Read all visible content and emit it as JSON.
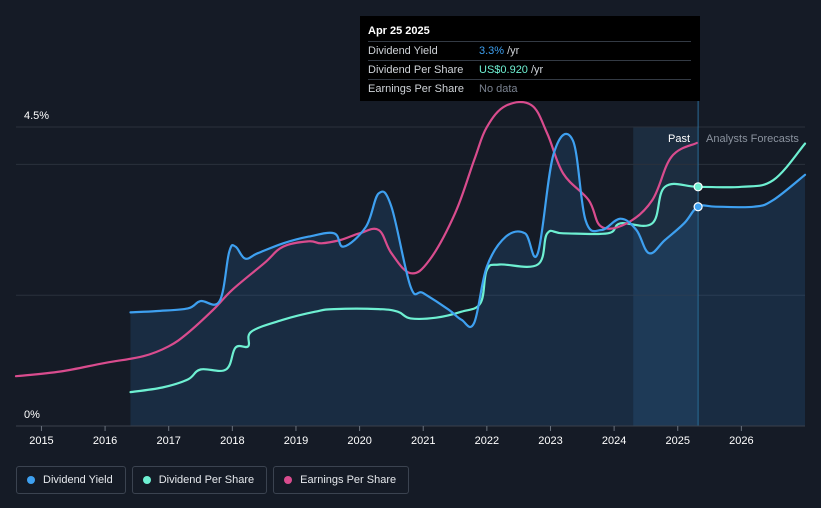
{
  "tooltip": {
    "date": "Apr 25 2025",
    "rows": [
      {
        "label": "Dividend Yield",
        "value": "3.3%",
        "unit": "/yr",
        "color": "#3ea0f0"
      },
      {
        "label": "Dividend Per Share",
        "value": "US$0.920",
        "unit": "/yr",
        "color": "#6ef0d2"
      },
      {
        "label": "Earnings Per Share",
        "value": "No data",
        "unit": "",
        "color": "#7a8290"
      }
    ]
  },
  "regions": {
    "past_label": "Past",
    "forecast_label": "Analysts Forecasts"
  },
  "legend": [
    {
      "label": "Dividend Yield",
      "color": "#3ea0f0"
    },
    {
      "label": "Dividend Per Share",
      "color": "#6ef0d2"
    },
    {
      "label": "Earnings Per Share",
      "color": "#d94c8e"
    }
  ],
  "chart_data": {
    "type": "line",
    "y_tick_labels": [
      "4.5%",
      "0%"
    ],
    "ylim": [
      0,
      4.5
    ],
    "xlim": [
      2014.6,
      2027.0
    ],
    "x_tick_labels": [
      "2015",
      "2016",
      "2017",
      "2018",
      "2019",
      "2020",
      "2021",
      "2022",
      "2023",
      "2024",
      "2025",
      "2026"
    ],
    "x_ticks": [
      2015,
      2016,
      2017,
      2018,
      2019,
      2020,
      2021,
      2022,
      2023,
      2024,
      2025,
      2026
    ],
    "forecast_start": 2024.3,
    "cursor_x": 2025.32,
    "series": [
      {
        "name": "Dividend Yield",
        "color": "#3ea0f0",
        "points": [
          [
            2016.4,
            1.71
          ],
          [
            2016.8,
            1.73
          ],
          [
            2017.3,
            1.77
          ],
          [
            2017.5,
            1.88
          ],
          [
            2017.8,
            1.88
          ],
          [
            2017.95,
            2.62
          ],
          [
            2018.05,
            2.7
          ],
          [
            2018.2,
            2.52
          ],
          [
            2018.4,
            2.6
          ],
          [
            2018.8,
            2.75
          ],
          [
            2019.2,
            2.85
          ],
          [
            2019.6,
            2.9
          ],
          [
            2019.75,
            2.7
          ],
          [
            2020.1,
            3.0
          ],
          [
            2020.3,
            3.5
          ],
          [
            2020.5,
            3.3
          ],
          [
            2020.8,
            2.1
          ],
          [
            2021.0,
            2.0
          ],
          [
            2021.4,
            1.75
          ],
          [
            2021.6,
            1.6
          ],
          [
            2021.8,
            1.55
          ],
          [
            2022.0,
            2.4
          ],
          [
            2022.3,
            2.85
          ],
          [
            2022.6,
            2.9
          ],
          [
            2022.8,
            2.6
          ],
          [
            2023.05,
            4.1
          ],
          [
            2023.35,
            4.3
          ],
          [
            2023.55,
            3.1
          ],
          [
            2023.8,
            2.95
          ],
          [
            2024.1,
            3.12
          ],
          [
            2024.35,
            2.95
          ],
          [
            2024.55,
            2.6
          ],
          [
            2024.8,
            2.8
          ],
          [
            2025.1,
            3.05
          ],
          [
            2025.32,
            3.3
          ],
          [
            2025.6,
            3.3
          ],
          [
            2026.2,
            3.3
          ],
          [
            2026.5,
            3.4
          ],
          [
            2027.0,
            3.78
          ]
        ]
      },
      {
        "name": "Dividend Per Share",
        "color": "#6ef0d2",
        "points": [
          [
            2016.4,
            0.51
          ],
          [
            2016.9,
            0.58
          ],
          [
            2017.3,
            0.7
          ],
          [
            2017.5,
            0.85
          ],
          [
            2017.9,
            0.85
          ],
          [
            2018.05,
            1.18
          ],
          [
            2018.25,
            1.2
          ],
          [
            2018.3,
            1.42
          ],
          [
            2018.8,
            1.6
          ],
          [
            2019.3,
            1.72
          ],
          [
            2019.6,
            1.76
          ],
          [
            2020.3,
            1.76
          ],
          [
            2020.6,
            1.72
          ],
          [
            2020.8,
            1.62
          ],
          [
            2021.2,
            1.63
          ],
          [
            2021.6,
            1.72
          ],
          [
            2021.9,
            1.85
          ],
          [
            2022.0,
            2.35
          ],
          [
            2022.2,
            2.43
          ],
          [
            2022.8,
            2.43
          ],
          [
            2022.95,
            2.9
          ],
          [
            2023.2,
            2.9
          ],
          [
            2023.9,
            2.9
          ],
          [
            2024.1,
            3.05
          ],
          [
            2024.6,
            3.05
          ],
          [
            2024.8,
            3.6
          ],
          [
            2025.32,
            3.6
          ],
          [
            2026.0,
            3.6
          ],
          [
            2026.5,
            3.7
          ],
          [
            2027.0,
            4.25
          ]
        ]
      },
      {
        "name": "Earnings Per Share",
        "color": "#d94c8e",
        "points": [
          [
            2014.6,
            0.75
          ],
          [
            2015.3,
            0.82
          ],
          [
            2016.0,
            0.95
          ],
          [
            2016.6,
            1.05
          ],
          [
            2017.0,
            1.2
          ],
          [
            2017.3,
            1.4
          ],
          [
            2017.7,
            1.75
          ],
          [
            2018.0,
            2.05
          ],
          [
            2018.5,
            2.45
          ],
          [
            2018.8,
            2.7
          ],
          [
            2019.2,
            2.78
          ],
          [
            2019.4,
            2.75
          ],
          [
            2019.7,
            2.8
          ],
          [
            2020.0,
            2.9
          ],
          [
            2020.3,
            2.95
          ],
          [
            2020.5,
            2.6
          ],
          [
            2020.8,
            2.3
          ],
          [
            2021.1,
            2.5
          ],
          [
            2021.5,
            3.2
          ],
          [
            2021.8,
            4.0
          ],
          [
            2022.0,
            4.5
          ],
          [
            2022.3,
            4.82
          ],
          [
            2022.7,
            4.83
          ],
          [
            2022.95,
            4.4
          ],
          [
            2023.2,
            3.8
          ],
          [
            2023.6,
            3.4
          ],
          [
            2023.8,
            3.0
          ],
          [
            2024.2,
            3.05
          ],
          [
            2024.6,
            3.4
          ],
          [
            2024.9,
            4.05
          ],
          [
            2025.3,
            4.26
          ]
        ]
      }
    ],
    "markers": [
      {
        "series": "Dividend Per Share",
        "x": 2025.32,
        "y": 3.6
      },
      {
        "series": "Dividend Yield",
        "x": 2025.32,
        "y": 3.3
      }
    ]
  }
}
